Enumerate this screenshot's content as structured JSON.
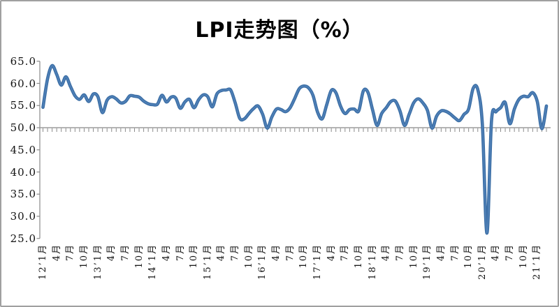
{
  "window": {
    "background": "#ffffff",
    "border_color": "#a0a0a0"
  },
  "chart": {
    "title": "LPI走势图（%）",
    "line_color": "#3b6ea5",
    "line_highlight_color": "#5585bb",
    "axis_color": "#9b9b9b",
    "tick_color": "#8a8a8a",
    "text_color": "#111111"
  },
  "chart_data": {
    "type": "line",
    "title": "LPI走势图（%）",
    "unit": "%",
    "grid": false,
    "legend": "none",
    "ylim": [
      25,
      65
    ],
    "y_tick_step": 5,
    "axis_cross_value": 50,
    "y_tick_labels": [
      "65.0",
      "60.0",
      "55.0",
      "50.0",
      "45.0",
      "40.0",
      "35.0",
      "30.0",
      "25.0"
    ],
    "x_start_month": "2012-01",
    "x_end_month": "2021-03",
    "x_tick_every_months": 3,
    "x_tick_labels": [
      "12’1月",
      "4月",
      "7月",
      "10月",
      "13’1月",
      "4月",
      "7月",
      "10月",
      "14’1月",
      "4月",
      "7月",
      "10月",
      "15’1月",
      "4月",
      "7月",
      "10月",
      "16’1月",
      "4月",
      "7月",
      "10月",
      "17’1月",
      "4月",
      "7月",
      "10月",
      "18’1月",
      "4月",
      "7月",
      "10月",
      "19’1月",
      "4月",
      "7月",
      "10月",
      "20’1月",
      "4月",
      "7月",
      "10月",
      "21’1月"
    ],
    "months": [
      "2012-01",
      "2012-02",
      "2012-03",
      "2012-04",
      "2012-05",
      "2012-06",
      "2012-07",
      "2012-08",
      "2012-09",
      "2012-10",
      "2012-11",
      "2012-12",
      "2013-01",
      "2013-02",
      "2013-03",
      "2013-04",
      "2013-05",
      "2013-06",
      "2013-07",
      "2013-08",
      "2013-09",
      "2013-10",
      "2013-11",
      "2013-12",
      "2014-01",
      "2014-02",
      "2014-03",
      "2014-04",
      "2014-05",
      "2014-06",
      "2014-07",
      "2014-08",
      "2014-09",
      "2014-10",
      "2014-11",
      "2014-12",
      "2015-01",
      "2015-02",
      "2015-03",
      "2015-04",
      "2015-05",
      "2015-06",
      "2015-07",
      "2015-08",
      "2015-09",
      "2015-10",
      "2015-11",
      "2015-12",
      "2016-01",
      "2016-02",
      "2016-03",
      "2016-04",
      "2016-05",
      "2016-06",
      "2016-07",
      "2016-08",
      "2016-09",
      "2016-10",
      "2016-11",
      "2016-12",
      "2017-01",
      "2017-02",
      "2017-03",
      "2017-04",
      "2017-05",
      "2017-06",
      "2017-07",
      "2017-08",
      "2017-09",
      "2017-10",
      "2017-11",
      "2017-12",
      "2018-01",
      "2018-02",
      "2018-03",
      "2018-04",
      "2018-05",
      "2018-06",
      "2018-07",
      "2018-08",
      "2018-09",
      "2018-10",
      "2018-11",
      "2018-12",
      "2019-01",
      "2019-02",
      "2019-03",
      "2019-04",
      "2019-05",
      "2019-06",
      "2019-07",
      "2019-08",
      "2019-09",
      "2019-10",
      "2019-11",
      "2019-12",
      "2020-01",
      "2020-02",
      "2020-03",
      "2020-04",
      "2020-05",
      "2020-06",
      "2020-07",
      "2020-08",
      "2020-09",
      "2020-10",
      "2020-11",
      "2020-12",
      "2021-01",
      "2021-02",
      "2021-03"
    ],
    "values": [
      54.6,
      61.0,
      64.0,
      62.0,
      59.6,
      61.5,
      59.3,
      57.2,
      56.4,
      57.4,
      55.9,
      57.6,
      57.0,
      53.4,
      56.2,
      57.0,
      56.5,
      55.6,
      55.9,
      57.2,
      57.1,
      56.9,
      56.0,
      55.4,
      55.2,
      55.3,
      57.3,
      55.8,
      56.9,
      56.7,
      54.4,
      55.8,
      56.4,
      54.5,
      56.3,
      57.4,
      57.0,
      54.7,
      57.6,
      58.4,
      58.5,
      58.5,
      55.6,
      52.1,
      52.0,
      53.2,
      54.3,
      54.9,
      53.0,
      49.9,
      52.4,
      54.2,
      54.1,
      53.6,
      54.5,
      56.6,
      58.8,
      59.4,
      59.0,
      57.3,
      53.5,
      52.0,
      55.2,
      58.4,
      57.9,
      54.9,
      53.2,
      54.1,
      54.2,
      53.8,
      58.3,
      58.0,
      54.1,
      50.5,
      53.2,
      54.5,
      55.9,
      56.0,
      53.8,
      50.5,
      53.0,
      55.6,
      56.5,
      55.6,
      53.9,
      49.9,
      52.6,
      53.8,
      53.7,
      53.1,
      52.2,
      51.6,
      53.0,
      54.2,
      58.9,
      58.6,
      50.8,
      26.2,
      51.5,
      53.6,
      54.5,
      55.7,
      50.9,
      54.2,
      56.4,
      57.1,
      57.0,
      57.9,
      55.9,
      49.8,
      54.9
    ]
  }
}
